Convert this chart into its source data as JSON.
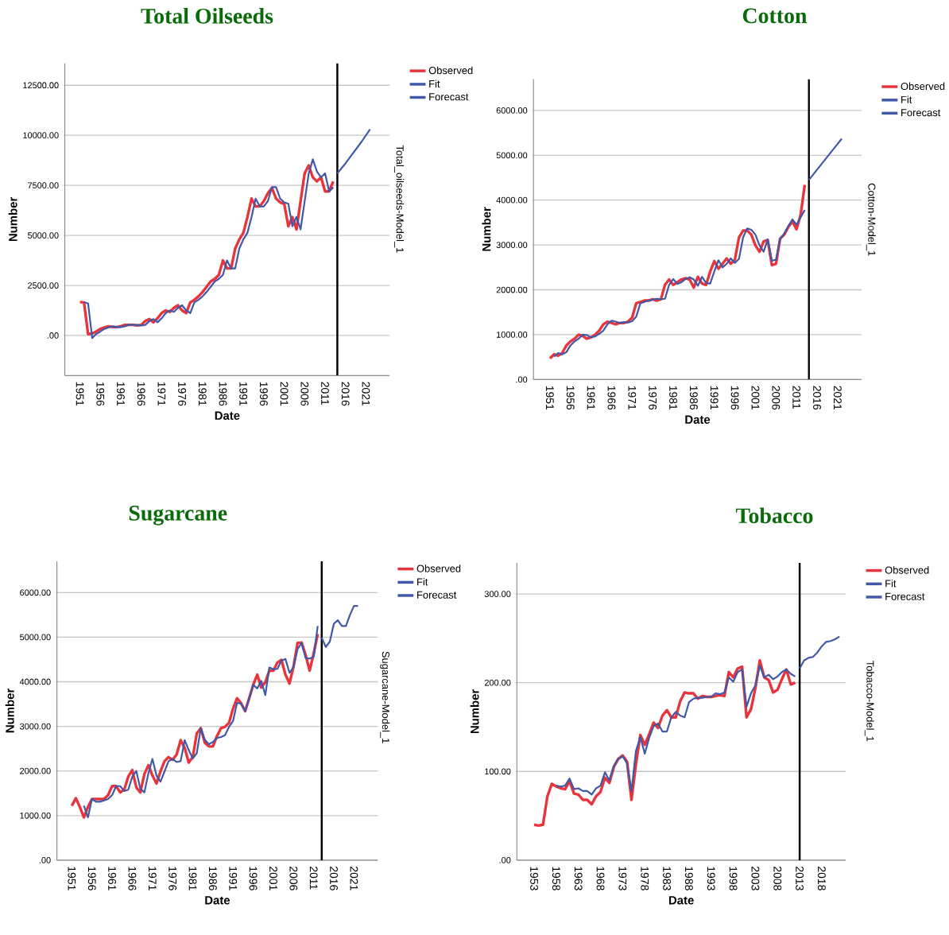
{
  "chart_data": [
    {
      "type": "line",
      "title": "Total Oilseeds",
      "xlabel": "Date",
      "ylabel": "Number",
      "annotations": [
        "Total_oilseeds-Model_1"
      ],
      "xlim": [
        1947.3,
        2026.8
      ],
      "xticks": [
        1951,
        1956,
        1961,
        1966,
        1971,
        1976,
        1981,
        1986,
        1991,
        1996,
        2001,
        2006,
        2011,
        2016,
        2021
      ],
      "ylim": [
        -2000,
        13600
      ],
      "yticks": [
        {
          "value": 0,
          "label": ".00"
        },
        {
          "value": 2500,
          "label": "2500.00"
        },
        {
          "value": 5000,
          "label": "5000.00"
        },
        {
          "value": 7500,
          "label": "7500.00"
        },
        {
          "value": 10000,
          "label": "10000.00"
        },
        {
          "value": 12500,
          "label": "12500.00"
        }
      ],
      "grid": "y",
      "legend": "top right",
      "ref_lines": [
        {
          "axis": "x",
          "value": 2014,
          "color": "#000000"
        }
      ],
      "series": [
        {
          "name": "Observed",
          "color": "#e8343c",
          "x": [
            1951,
            1952,
            1953,
            1954,
            1955,
            1956,
            1957,
            1958,
            1959,
            1960,
            1961,
            1962,
            1963,
            1964,
            1965,
            1966,
            1967,
            1968,
            1969,
            1970,
            1971,
            1972,
            1973,
            1974,
            1975,
            1976,
            1977,
            1978,
            1979,
            1980,
            1981,
            1982,
            1983,
            1984,
            1985,
            1986,
            1987,
            1988,
            1989,
            1990,
            1991,
            1992,
            1993,
            1994,
            1995,
            1996,
            1997,
            1998,
            1999,
            2000,
            2001,
            2002,
            2003,
            2004,
            2005,
            2006,
            2007,
            2008,
            2009,
            2010,
            2011,
            2012,
            2013
          ],
          "values": [
            1670,
            1650,
            70,
            100,
            200,
            330,
            400,
            460,
            420,
            420,
            460,
            530,
            530,
            530,
            500,
            530,
            720,
            820,
            660,
            860,
            1120,
            1250,
            1180,
            1380,
            1510,
            1250,
            1120,
            1650,
            1780,
            1950,
            2170,
            2430,
            2700,
            2830,
            3030,
            3750,
            3350,
            3350,
            4340,
            4800,
            5130,
            5920,
            6840,
            6450,
            6450,
            6710,
            7110,
            7370,
            6840,
            6650,
            6580,
            5460,
            5920,
            5300,
            6700,
            8100,
            8500,
            7900,
            7700,
            7900,
            7200,
            7200,
            7700
          ]
        },
        {
          "name": "Fit",
          "color": "#4058a8",
          "x": [
            1952,
            1953,
            1954,
            1955,
            1956,
            1957,
            1958,
            1959,
            1960,
            1961,
            1962,
            1963,
            1964,
            1965,
            1966,
            1967,
            1968,
            1969,
            1970,
            1971,
            1972,
            1973,
            1974,
            1975,
            1976,
            1977,
            1978,
            1979,
            1980,
            1981,
            1982,
            1983,
            1984,
            1985,
            1986,
            1987,
            1988,
            1989,
            1990,
            1991,
            1992,
            1993,
            1994,
            1995,
            1996,
            1997,
            1998,
            1999,
            2000,
            2001,
            2002,
            2003,
            2004,
            2005,
            2006,
            2007,
            2008,
            2009,
            2010,
            2011,
            2012,
            2013
          ],
          "values": [
            1670,
            1600,
            -130,
            80,
            200,
            330,
            400,
            460,
            420,
            420,
            460,
            530,
            530,
            530,
            500,
            530,
            720,
            820,
            660,
            860,
            1120,
            1250,
            1180,
            1380,
            1510,
            1250,
            1120,
            1650,
            1780,
            1950,
            2170,
            2430,
            2700,
            2830,
            3030,
            3750,
            3350,
            3350,
            4340,
            4800,
            5130,
            5920,
            6840,
            6450,
            6450,
            6710,
            7410,
            7410,
            6840,
            6650,
            6580,
            5460,
            5920,
            5300,
            6700,
            8100,
            8800,
            8200,
            7900,
            8100,
            7200,
            7400
          ]
        },
        {
          "name": "Forecast",
          "color": "#4058a8",
          "x": [
            2014,
            2016,
            2018,
            2020,
            2022
          ],
          "values": [
            8100,
            8600,
            9150,
            9700,
            10300
          ]
        }
      ]
    },
    {
      "type": "line",
      "title": "Cotton",
      "xlabel": "Date",
      "ylabel": "Number",
      "annotations": [
        "Cotton-Model_1"
      ],
      "xlim": [
        1947,
        2026.8
      ],
      "xticks": [
        1951,
        1956,
        1961,
        1966,
        1971,
        1976,
        1981,
        1986,
        1991,
        1996,
        2001,
        2006,
        2011,
        2016,
        2021
      ],
      "ylim": [
        0,
        6700
      ],
      "yticks": [
        {
          "value": 0,
          "label": ".00"
        },
        {
          "value": 1000,
          "label": "1000.00"
        },
        {
          "value": 2000,
          "label": "2000.00"
        },
        {
          "value": 3000,
          "label": "3000.00"
        },
        {
          "value": 4000,
          "label": "4000.00"
        },
        {
          "value": 5000,
          "label": "5000.00"
        },
        {
          "value": 6000,
          "label": "6000.00"
        }
      ],
      "grid": "y",
      "legend": "top right",
      "ref_lines": [
        {
          "axis": "x",
          "value": 2014,
          "color": "#000000"
        }
      ],
      "series": [
        {
          "name": "Observed",
          "color": "#e8343c",
          "x": [
            1951,
            1952,
            1953,
            1954,
            1955,
            1956,
            1957,
            1958,
            1959,
            1960,
            1961,
            1962,
            1963,
            1964,
            1965,
            1966,
            1967,
            1968,
            1969,
            1970,
            1971,
            1972,
            1973,
            1974,
            1975,
            1976,
            1977,
            1978,
            1979,
            1980,
            1981,
            1982,
            1983,
            1984,
            1985,
            1986,
            1987,
            1988,
            1989,
            1990,
            1991,
            1992,
            1993,
            1994,
            1995,
            1996,
            1997,
            1998,
            1999,
            2000,
            2001,
            2002,
            2003,
            2004,
            2005,
            2006,
            2007,
            2008,
            2009,
            2010,
            2011,
            2012,
            2013
          ],
          "values": [
            470,
            560,
            530,
            590,
            760,
            850,
            910,
            1000,
            970,
            910,
            940,
            1000,
            1090,
            1230,
            1290,
            1260,
            1230,
            1260,
            1260,
            1290,
            1380,
            1700,
            1730,
            1760,
            1760,
            1790,
            1760,
            1790,
            2110,
            2230,
            2110,
            2170,
            2230,
            2260,
            2230,
            2050,
            2290,
            2140,
            2110,
            2410,
            2640,
            2470,
            2580,
            2700,
            2580,
            2670,
            3170,
            3320,
            3320,
            3230,
            2990,
            2850,
            3080,
            3110,
            2550,
            2580,
            3140,
            3230,
            3400,
            3520,
            3350,
            3670,
            4340
          ]
        },
        {
          "name": "Fit",
          "color": "#4058a8",
          "x": [
            1952,
            1953,
            1954,
            1955,
            1956,
            1957,
            1958,
            1959,
            1960,
            1961,
            1962,
            1963,
            1964,
            1965,
            1966,
            1967,
            1968,
            1969,
            1970,
            1971,
            1972,
            1973,
            1974,
            1975,
            1976,
            1977,
            1978,
            1979,
            1980,
            1981,
            1982,
            1983,
            1984,
            1985,
            1986,
            1987,
            1988,
            1989,
            1990,
            1991,
            1992,
            1993,
            1994,
            1995,
            1996,
            1997,
            1998,
            1999,
            2000,
            2001,
            2002,
            2003,
            2004,
            2005,
            2006,
            2007,
            2008,
            2009,
            2010,
            2011,
            2012,
            2013
          ],
          "values": [
            510,
            590,
            560,
            610,
            760,
            850,
            910,
            1000,
            990,
            940,
            960,
            1020,
            1090,
            1230,
            1310,
            1290,
            1260,
            1280,
            1270,
            1300,
            1400,
            1700,
            1730,
            1760,
            1780,
            1800,
            1790,
            1800,
            2110,
            2240,
            2130,
            2170,
            2240,
            2280,
            2230,
            2090,
            2290,
            2150,
            2140,
            2410,
            2660,
            2500,
            2580,
            2700,
            2600,
            2690,
            3170,
            3370,
            3340,
            3230,
            2990,
            2850,
            3130,
            2650,
            2670,
            3140,
            3250,
            3420,
            3570,
            3450,
            3620,
            3780
          ]
        },
        {
          "name": "Forecast",
          "color": "#4058a8",
          "x": [
            2014,
            2016,
            2018,
            2020,
            2022
          ],
          "values": [
            4450,
            4680,
            4910,
            5140,
            5370
          ]
        }
      ]
    },
    {
      "type": "line",
      "title": "Sugarcane",
      "xlabel": "Date",
      "ylabel": "Number",
      "annotations": [
        "Sugarcane-Model_1"
      ],
      "xlim": [
        1947.3,
        2026.9
      ],
      "xticks": [
        1951,
        1956,
        1961,
        1966,
        1971,
        1976,
        1981,
        1986,
        1991,
        1996,
        2001,
        2006,
        2011,
        2016,
        2021
      ],
      "ylim": [
        0,
        6700
      ],
      "yticks": [
        {
          "value": 0,
          "label": ".00"
        },
        {
          "value": 1000,
          "label": "1000.00"
        },
        {
          "value": 2000,
          "label": "2000.00"
        },
        {
          "value": 3000,
          "label": "3000.00"
        },
        {
          "value": 4000,
          "label": "4000.00"
        },
        {
          "value": 5000,
          "label": "5000.00"
        },
        {
          "value": 6000,
          "label": "6000.00"
        }
      ],
      "grid": "y",
      "legend": "top right",
      "ref_lines": [
        {
          "axis": "x",
          "value": 2013,
          "color": "#000000"
        }
      ],
      "series": [
        {
          "name": "Observed",
          "color": "#e8343c",
          "x": [
            1951,
            1952,
            1953,
            1954,
            1955,
            1956,
            1957,
            1958,
            1959,
            1960,
            1961,
            1962,
            1963,
            1964,
            1965,
            1966,
            1967,
            1968,
            1969,
            1970,
            1971,
            1972,
            1973,
            1974,
            1975,
            1976,
            1977,
            1978,
            1979,
            1980,
            1981,
            1982,
            1983,
            1984,
            1985,
            1986,
            1987,
            1988,
            1989,
            1990,
            1991,
            1992,
            1993,
            1994,
            1995,
            1996,
            1997,
            1998,
            1999,
            2000,
            2001,
            2002,
            2003,
            2004,
            2005,
            2006,
            2007,
            2008,
            2009,
            2010,
            2011,
            2012
          ],
          "values": [
            1220,
            1390,
            1190,
            960,
            1190,
            1370,
            1370,
            1370,
            1370,
            1460,
            1660,
            1660,
            1520,
            1580,
            1870,
            2020,
            1630,
            1520,
            1930,
            2130,
            1900,
            1720,
            1990,
            2220,
            2310,
            2250,
            2370,
            2690,
            2520,
            2190,
            2310,
            2840,
            2960,
            2630,
            2550,
            2550,
            2780,
            2960,
            2990,
            3080,
            3400,
            3630,
            3520,
            3340,
            3630,
            3930,
            4160,
            3870,
            3990,
            4250,
            4250,
            4430,
            4490,
            4160,
            3960,
            4340,
            4870,
            4880,
            4600,
            4250,
            4630,
            5070
          ]
        },
        {
          "name": "Fit",
          "color": "#4058a8",
          "x": [
            1954,
            1955,
            1956,
            1957,
            1958,
            1959,
            1960,
            1961,
            1962,
            1963,
            1964,
            1965,
            1966,
            1967,
            1968,
            1969,
            1970,
            1971,
            1972,
            1973,
            1974,
            1975,
            1976,
            1977,
            1978,
            1979,
            1980,
            1981,
            1982,
            1983,
            1984,
            1985,
            1986,
            1987,
            1988,
            1989,
            1990,
            1991,
            1992,
            1993,
            1994,
            1995,
            1996,
            1997,
            1998,
            1999,
            2000,
            2001,
            2002,
            2003,
            2004,
            2005,
            2006,
            2007,
            2008,
            2009,
            2010,
            2011,
            2012
          ],
          "values": [
            1220,
            960,
            1370,
            1310,
            1310,
            1340,
            1370,
            1460,
            1660,
            1660,
            1550,
            1580,
            1870,
            2000,
            1600,
            1520,
            1950,
            2270,
            1900,
            1760,
            1990,
            2220,
            2270,
            2200,
            2220,
            2690,
            2470,
            2280,
            2400,
            2960,
            2700,
            2600,
            2650,
            2740,
            2760,
            2800,
            2990,
            3120,
            3530,
            3510,
            3340,
            3630,
            3930,
            3850,
            4020,
            3700,
            4320,
            4280,
            4290,
            4470,
            4510,
            4200,
            4330,
            4730,
            4870,
            4530,
            4520,
            4560,
            5250
          ]
        },
        {
          "name": "Forecast",
          "color": "#4058a8",
          "x": [
            2013,
            2014,
            2015,
            2016,
            2017,
            2018,
            2019,
            2020,
            2021,
            2022
          ],
          "values": [
            4990,
            4780,
            4900,
            5300,
            5380,
            5250,
            5250,
            5500,
            5700,
            5700
          ]
        }
      ]
    },
    {
      "type": "line",
      "title": "Tobacco",
      "xlabel": "Date",
      "ylabel": "Number",
      "annotations": [
        "Tobacco-Model_1"
      ],
      "xlim": [
        1949.1,
        2023.4
      ],
      "xticks": [
        1953,
        1958,
        1963,
        1968,
        1973,
        1978,
        1983,
        1988,
        1993,
        1998,
        2003,
        2008,
        2013,
        2018
      ],
      "ylim": [
        0,
        335
      ],
      "yticks": [
        {
          "value": 0,
          "label": ".00"
        },
        {
          "value": 100,
          "label": "100.00"
        },
        {
          "value": 200,
          "label": "200.00"
        },
        {
          "value": 300,
          "label": "300.00"
        }
      ],
      "grid": "y",
      "legend": "top right",
      "ref_lines": [
        {
          "axis": "x",
          "value": 2013,
          "color": "#000000"
        }
      ],
      "series": [
        {
          "name": "Observed",
          "color": "#e8343c",
          "x": [
            1953,
            1954,
            1955,
            1956,
            1957,
            1958,
            1959,
            1960,
            1961,
            1962,
            1963,
            1964,
            1965,
            1966,
            1967,
            1968,
            1969,
            1970,
            1971,
            1972,
            1973,
            1974,
            1975,
            1976,
            1977,
            1978,
            1979,
            1980,
            1981,
            1982,
            1983,
            1984,
            1985,
            1986,
            1987,
            1988,
            1989,
            1990,
            1991,
            1992,
            1993,
            1994,
            1995,
            1996,
            1997,
            1998,
            1999,
            2000,
            2001,
            2002,
            2003,
            2004,
            2005,
            2006,
            2007,
            2008,
            2009,
            2010,
            2011,
            2012
          ],
          "values": [
            40,
            39,
            40,
            72,
            86,
            83,
            81,
            80,
            89,
            75,
            74,
            68,
            68,
            63,
            72,
            77,
            93,
            87,
            105,
            114,
            118,
            111,
            68,
            108,
            141,
            130,
            142,
            155,
            149,
            163,
            169,
            161,
            161,
            179,
            189,
            188,
            188,
            182,
            185,
            184,
            184,
            185,
            186,
            185,
            212,
            206,
            216,
            218,
            161,
            170,
            194,
            225,
            206,
            203,
            189,
            192,
            204,
            215,
            198,
            200
          ]
        },
        {
          "name": "Fit",
          "color": "#4058a8",
          "x": [
            1958,
            1959,
            1960,
            1961,
            1962,
            1963,
            1964,
            1965,
            1966,
            1967,
            1968,
            1969,
            1970,
            1971,
            1972,
            1973,
            1974,
            1975,
            1976,
            1977,
            1978,
            1979,
            1980,
            1981,
            1982,
            1983,
            1984,
            1985,
            1986,
            1987,
            1988,
            1989,
            1990,
            1991,
            1992,
            1993,
            1994,
            1995,
            1996,
            1997,
            1998,
            1999,
            2000,
            2001,
            2002,
            2003,
            2004,
            2005,
            2006,
            2007,
            2008,
            2009,
            2010,
            2011,
            2012
          ],
          "values": [
            84,
            83,
            84,
            92,
            80,
            81,
            78,
            78,
            74,
            81,
            84,
            99,
            90,
            106,
            114,
            117,
            109,
            78,
            123,
            139,
            120,
            138,
            151,
            154,
            145,
            145,
            161,
            167,
            163,
            161,
            178,
            182,
            183,
            183,
            184,
            184,
            188,
            187,
            189,
            206,
            201,
            212,
            215,
            173,
            188,
            197,
            219,
            206,
            209,
            204,
            207,
            212,
            215,
            210,
            207
          ]
        },
        {
          "name": "Forecast",
          "color": "#4058a8",
          "x": [
            2013,
            2014,
            2015,
            2016,
            2017,
            2018,
            2019,
            2020,
            2021,
            2022
          ],
          "values": [
            216,
            225,
            228,
            229,
            234,
            241,
            246,
            247,
            249,
            252
          ]
        }
      ]
    }
  ]
}
